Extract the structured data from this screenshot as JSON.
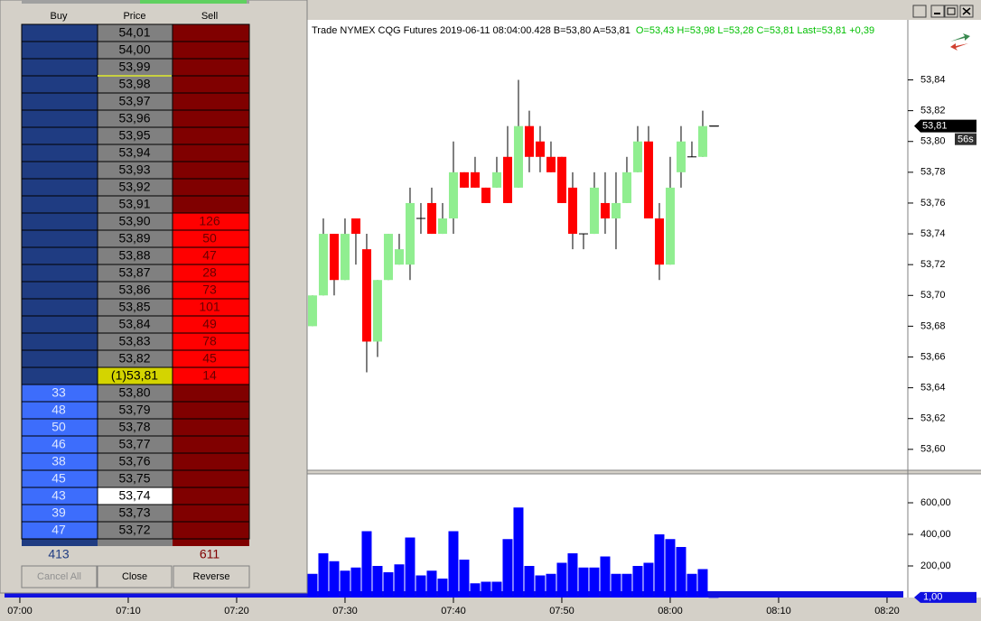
{
  "chart_data": {
    "type": "candlestick",
    "title": "Trade  NYMEX  CQG  Futures  2019-06-11  08:04:00.428  B=53,80  A=53,81",
    "subtitle": "O=53,43  H=53,98  L=53,28  C=53,81  Last=53,81  +0,39",
    "x": [
      447,
      448,
      449,
      450,
      451,
      452,
      453,
      454,
      455,
      456,
      457,
      458,
      459,
      460,
      461,
      462,
      463,
      464,
      465,
      466,
      467,
      468,
      469,
      470,
      471,
      472,
      473,
      474,
      475,
      476,
      477,
      478,
      479,
      480,
      481,
      482,
      483,
      484
    ],
    "open": [
      53.68,
      53.7,
      53.74,
      53.71,
      53.75,
      53.73,
      53.67,
      53.71,
      53.72,
      53.72,
      53.75,
      53.76,
      53.74,
      53.75,
      53.78,
      53.78,
      53.77,
      53.77,
      53.79,
      53.77,
      53.81,
      53.8,
      53.79,
      53.79,
      53.77,
      53.74,
      53.74,
      53.76,
      53.75,
      53.76,
      53.78,
      53.8,
      53.75,
      53.72,
      53.78,
      53.79,
      53.79,
      53.81
    ],
    "high": [
      53.7,
      53.75,
      53.74,
      53.75,
      53.75,
      53.74,
      53.71,
      53.74,
      53.74,
      53.77,
      53.76,
      53.77,
      53.76,
      53.8,
      53.78,
      53.79,
      53.77,
      53.79,
      53.81,
      53.84,
      53.82,
      53.81,
      53.8,
      53.79,
      53.78,
      53.74,
      53.78,
      53.78,
      53.78,
      53.79,
      53.81,
      53.81,
      53.76,
      53.79,
      53.81,
      53.8,
      53.82,
      53.81
    ],
    "low": [
      53.68,
      53.7,
      53.7,
      53.71,
      53.72,
      53.65,
      53.66,
      53.71,
      53.72,
      53.71,
      53.74,
      53.74,
      53.74,
      53.74,
      53.77,
      53.77,
      53.76,
      53.77,
      53.76,
      53.77,
      53.78,
      53.78,
      53.78,
      53.76,
      53.73,
      53.73,
      53.74,
      53.74,
      53.73,
      53.76,
      53.78,
      53.75,
      53.71,
      53.72,
      53.77,
      53.79,
      53.79,
      53.81
    ],
    "close": [
      53.7,
      53.74,
      53.71,
      53.74,
      53.74,
      53.67,
      53.71,
      53.74,
      53.73,
      53.76,
      53.75,
      53.74,
      53.75,
      53.78,
      53.77,
      53.77,
      53.76,
      53.78,
      53.76,
      53.81,
      53.79,
      53.79,
      53.78,
      53.76,
      53.74,
      53.74,
      53.77,
      53.75,
      53.76,
      53.78,
      53.8,
      53.75,
      53.72,
      53.77,
      53.8,
      53.79,
      53.81,
      53.81
    ],
    "volume": [
      150,
      280,
      230,
      170,
      190,
      420,
      200,
      160,
      210,
      380,
      140,
      170,
      120,
      420,
      240,
      90,
      100,
      100,
      370,
      570,
      200,
      140,
      150,
      220,
      280,
      190,
      190,
      260,
      150,
      150,
      200,
      220,
      400,
      370,
      320,
      150,
      180,
      1
    ],
    "up_color": "#90ee90",
    "down_color": "#ff0000",
    "volume_color": "#0000ff",
    "xlim": [
      418.17,
      501.92
    ],
    "xticks": [
      {
        "value": 420,
        "label": "07:00"
      },
      {
        "value": 430,
        "label": "07:10"
      },
      {
        "value": 440,
        "label": "07:20"
      },
      {
        "value": 450,
        "label": "07:30"
      },
      {
        "value": 460,
        "label": "07:40"
      },
      {
        "value": 470,
        "label": "07:50"
      },
      {
        "value": 480,
        "label": "08:00"
      },
      {
        "value": 490,
        "label": "08:10"
      },
      {
        "value": 500,
        "label": "08:20"
      }
    ],
    "ylim": [
      53.587,
      53.879
    ],
    "yticks": [
      {
        "value": 53.6,
        "label": "53,60"
      },
      {
        "value": 53.62,
        "label": "53,62"
      },
      {
        "value": 53.64,
        "label": "53,64"
      },
      {
        "value": 53.66,
        "label": "53,66"
      },
      {
        "value": 53.68,
        "label": "53,68"
      },
      {
        "value": 53.7,
        "label": "53,70"
      },
      {
        "value": 53.72,
        "label": "53,72"
      },
      {
        "value": 53.74,
        "label": "53,74"
      },
      {
        "value": 53.76,
        "label": "53,76"
      },
      {
        "value": 53.78,
        "label": "53,78"
      },
      {
        "value": 53.8,
        "label": "53,80"
      },
      {
        "value": 53.82,
        "label": "53,82"
      },
      {
        "value": 53.84,
        "label": "53,84"
      }
    ],
    "y2lim": [
      0,
      783
    ],
    "y2ticks": [
      {
        "value": 200,
        "label": "200,00"
      },
      {
        "value": 400,
        "label": "400,00"
      },
      {
        "value": 600,
        "label": "600,00"
      }
    ],
    "price_marker": {
      "value": 53.81,
      "label": "53,81"
    },
    "countdown": "56s",
    "volume_marker": {
      "value": 1,
      "label": "1,00"
    }
  },
  "dom": {
    "headers": [
      "Buy",
      "Price",
      "Sell"
    ],
    "rows": [
      {
        "price": "54,01"
      },
      {
        "price": "54,00"
      },
      {
        "price": "53,99"
      },
      {
        "price": "53,98"
      },
      {
        "price": "53,97"
      },
      {
        "price": "53,96"
      },
      {
        "price": "53,95"
      },
      {
        "price": "53,94"
      },
      {
        "price": "53,93"
      },
      {
        "price": "53,92"
      },
      {
        "price": "53,91"
      },
      {
        "price": "53,90",
        "sell": 126
      },
      {
        "price": "53,89",
        "sell": 50
      },
      {
        "price": "53,88",
        "sell": 47
      },
      {
        "price": "53,87",
        "sell": 28
      },
      {
        "price": "53,86",
        "sell": 73
      },
      {
        "price": "53,85",
        "sell": 101
      },
      {
        "price": "53,84",
        "sell": 49
      },
      {
        "price": "53,83",
        "sell": 78
      },
      {
        "price": "53,82",
        "sell": 45
      },
      {
        "price": "(1)53,81",
        "sell": 14,
        "bg": "#d4d400"
      },
      {
        "price": "53,80",
        "buy": 33
      },
      {
        "price": "53,79",
        "buy": 48
      },
      {
        "price": "53,78",
        "buy": 50
      },
      {
        "price": "53,77",
        "buy": 46
      },
      {
        "price": "53,76",
        "buy": 38
      },
      {
        "price": "53,75",
        "buy": 45
      },
      {
        "price": "53,74",
        "buy": 43,
        "bg": "#ffffff"
      },
      {
        "price": "53,73",
        "buy": 39
      },
      {
        "price": "53,72",
        "buy": 47
      }
    ],
    "buy_total": 413,
    "sell_total": 611,
    "buttons": [
      "Cancel All",
      "Close",
      "Reverse"
    ]
  }
}
